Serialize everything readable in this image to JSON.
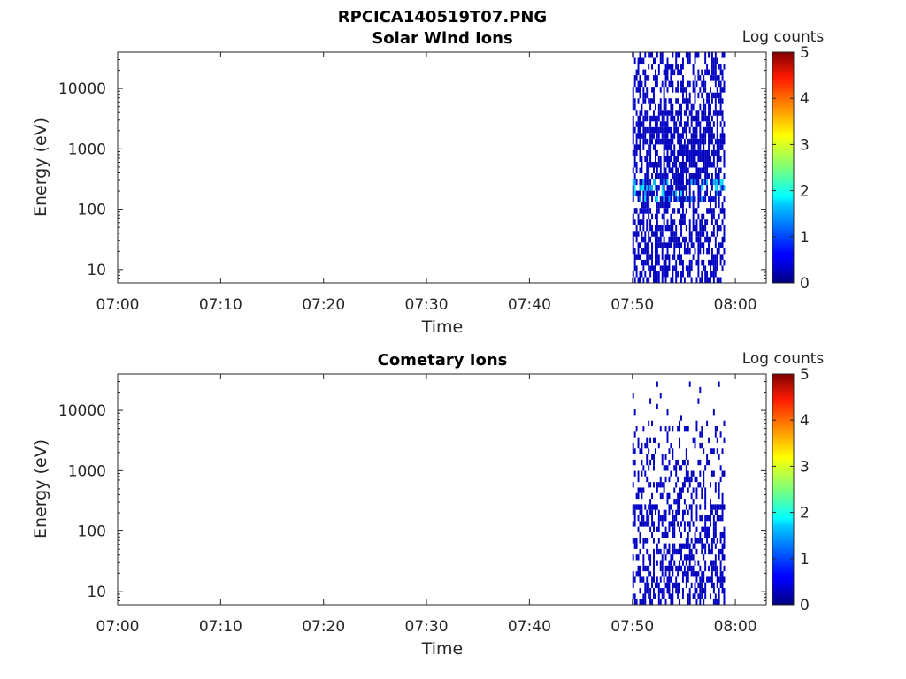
{
  "figure_title": "RPCICA140519T07.PNG",
  "chart_data": [
    {
      "type": "heatmap",
      "title": "Solar Wind Ions",
      "xlabel": "Time",
      "ylabel": "Energy (eV)",
      "y_scale": "log",
      "xlim": [
        "07:00",
        "08:03"
      ],
      "ylim": [
        6,
        40000
      ],
      "x_ticks": [
        "07:00",
        "07:10",
        "07:20",
        "07:30",
        "07:40",
        "07:50",
        "08:00"
      ],
      "y_ticks": [
        10,
        100,
        1000,
        10000
      ],
      "y_tick_labels": [
        "10",
        "100",
        "1000",
        "10000"
      ],
      "colorbar": {
        "label": "Log counts",
        "range": [
          0,
          5
        ],
        "ticks": [
          "0",
          "1",
          "2",
          "3",
          "4",
          "5"
        ],
        "colormap": "jet"
      },
      "data_time_range": [
        "07:50",
        "07:59"
      ],
      "data_energy_range": [
        6,
        40000
      ],
      "typical_log_counts": 0.3,
      "max_log_counts": 1.8,
      "notes_visible": "sparse counts concentrated 07:50-07:59, higher counts (~1.5-1.8) near 500-600 eV"
    },
    {
      "type": "heatmap",
      "title": "Cometary Ions",
      "xlabel": "Time",
      "ylabel": "Energy (eV)",
      "y_scale": "log",
      "xlim": [
        "07:00",
        "08:03"
      ],
      "ylim": [
        6,
        40000
      ],
      "x_ticks": [
        "07:00",
        "07:10",
        "07:20",
        "07:30",
        "07:40",
        "07:50",
        "08:00"
      ],
      "y_ticks": [
        10,
        100,
        1000,
        10000
      ],
      "y_tick_labels": [
        "10",
        "100",
        "1000",
        "10000"
      ],
      "colorbar": {
        "label": "Log counts",
        "range": [
          0,
          5
        ],
        "ticks": [
          "0",
          "1",
          "2",
          "3",
          "4",
          "5"
        ],
        "colormap": "jet"
      },
      "data_time_range": [
        "07:50",
        "07:59"
      ],
      "data_energy_range": [
        6,
        30000
      ],
      "typical_log_counts": 0.3,
      "max_log_counts": 0.5
    }
  ]
}
